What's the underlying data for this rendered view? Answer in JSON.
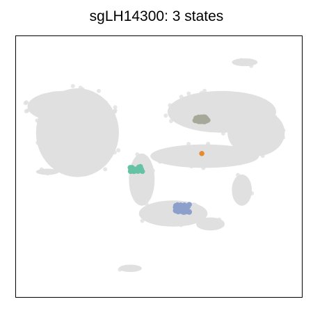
{
  "title": "sgLH14300: 3 states",
  "chart_data": {
    "type": "scatter",
    "title": "sgLH14300: 3 states",
    "xlabel": "",
    "ylabel": "",
    "axes_ticks": false,
    "grid": false,
    "legend": "none",
    "background_color": "#e0e0e0",
    "background_clusters": [
      {
        "name": "left-body",
        "cx": 0.215,
        "cy": 0.63,
        "rx": 0.145,
        "ry": 0.17
      },
      {
        "name": "left-body-lobe",
        "cx": 0.17,
        "cy": 0.73,
        "rx": 0.13,
        "ry": 0.06
      },
      {
        "name": "neck",
        "cx": 0.44,
        "cy": 0.45,
        "rx": 0.045,
        "ry": 0.1
      },
      {
        "name": "lower-arm",
        "cx": 0.55,
        "cy": 0.32,
        "rx": 0.12,
        "ry": 0.05
      },
      {
        "name": "lower-arm-tip",
        "cx": 0.68,
        "cy": 0.28,
        "rx": 0.05,
        "ry": 0.025
      },
      {
        "name": "right-upper",
        "cx": 0.72,
        "cy": 0.71,
        "rx": 0.19,
        "ry": 0.08
      },
      {
        "name": "right-upper-lobe",
        "cx": 0.84,
        "cy": 0.63,
        "rx": 0.1,
        "ry": 0.09
      },
      {
        "name": "right-middle",
        "cx": 0.66,
        "cy": 0.54,
        "rx": 0.19,
        "ry": 0.045
      },
      {
        "name": "right-lower-arm",
        "cx": 0.79,
        "cy": 0.41,
        "rx": 0.035,
        "ry": 0.06
      },
      {
        "name": "top-small",
        "cx": 0.8,
        "cy": 0.9,
        "rx": 0.045,
        "ry": 0.015
      },
      {
        "name": "left-small",
        "cx": 0.11,
        "cy": 0.48,
        "rx": 0.04,
        "ry": 0.012
      },
      {
        "name": "bottom-small",
        "cx": 0.4,
        "cy": 0.11,
        "rx": 0.04,
        "ry": 0.014
      }
    ],
    "series": [
      {
        "color": "#66c2a5",
        "cx": 0.42,
        "cy": 0.49,
        "w": 0.045,
        "h": 0.022,
        "n": 26
      },
      {
        "color": "#8da0cb",
        "cx": 0.58,
        "cy": 0.34,
        "w": 0.055,
        "h": 0.03,
        "n": 40
      },
      {
        "color": "#a6a89a",
        "cx": 0.65,
        "cy": 0.68,
        "w": 0.05,
        "h": 0.022,
        "n": 28
      },
      {
        "color": "#e78a2e",
        "cx": 0.65,
        "cy": 0.55,
        "w": 0.0,
        "h": 0.0,
        "n": 1
      }
    ]
  }
}
